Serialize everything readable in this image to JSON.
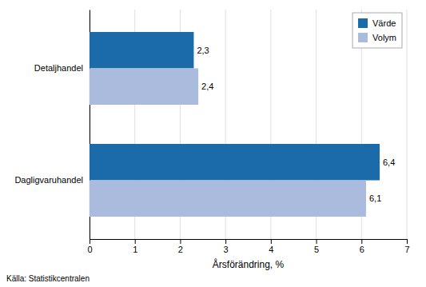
{
  "chart_data": {
    "type": "bar",
    "orientation": "horizontal",
    "categories": [
      "Dagligvaruhandel",
      "Detaljhandel"
    ],
    "series": [
      {
        "name": "Värde",
        "color": "#1B6AAA",
        "values": [
          6.4,
          2.3
        ],
        "value_labels": [
          "6,4",
          "2,3"
        ]
      },
      {
        "name": "Volym",
        "color": "#AABBDD",
        "values": [
          6.1,
          2.4
        ],
        "value_labels": [
          "6,1",
          "2,4"
        ]
      }
    ],
    "xlabel": "Årsförändring, %",
    "source": "Källa: Statistikcentralen",
    "xlim": [
      0,
      7
    ],
    "xticks": [
      0,
      1,
      2,
      3,
      4,
      5,
      6,
      7
    ],
    "grid": true,
    "legend": "upper right",
    "data_labels": true
  }
}
